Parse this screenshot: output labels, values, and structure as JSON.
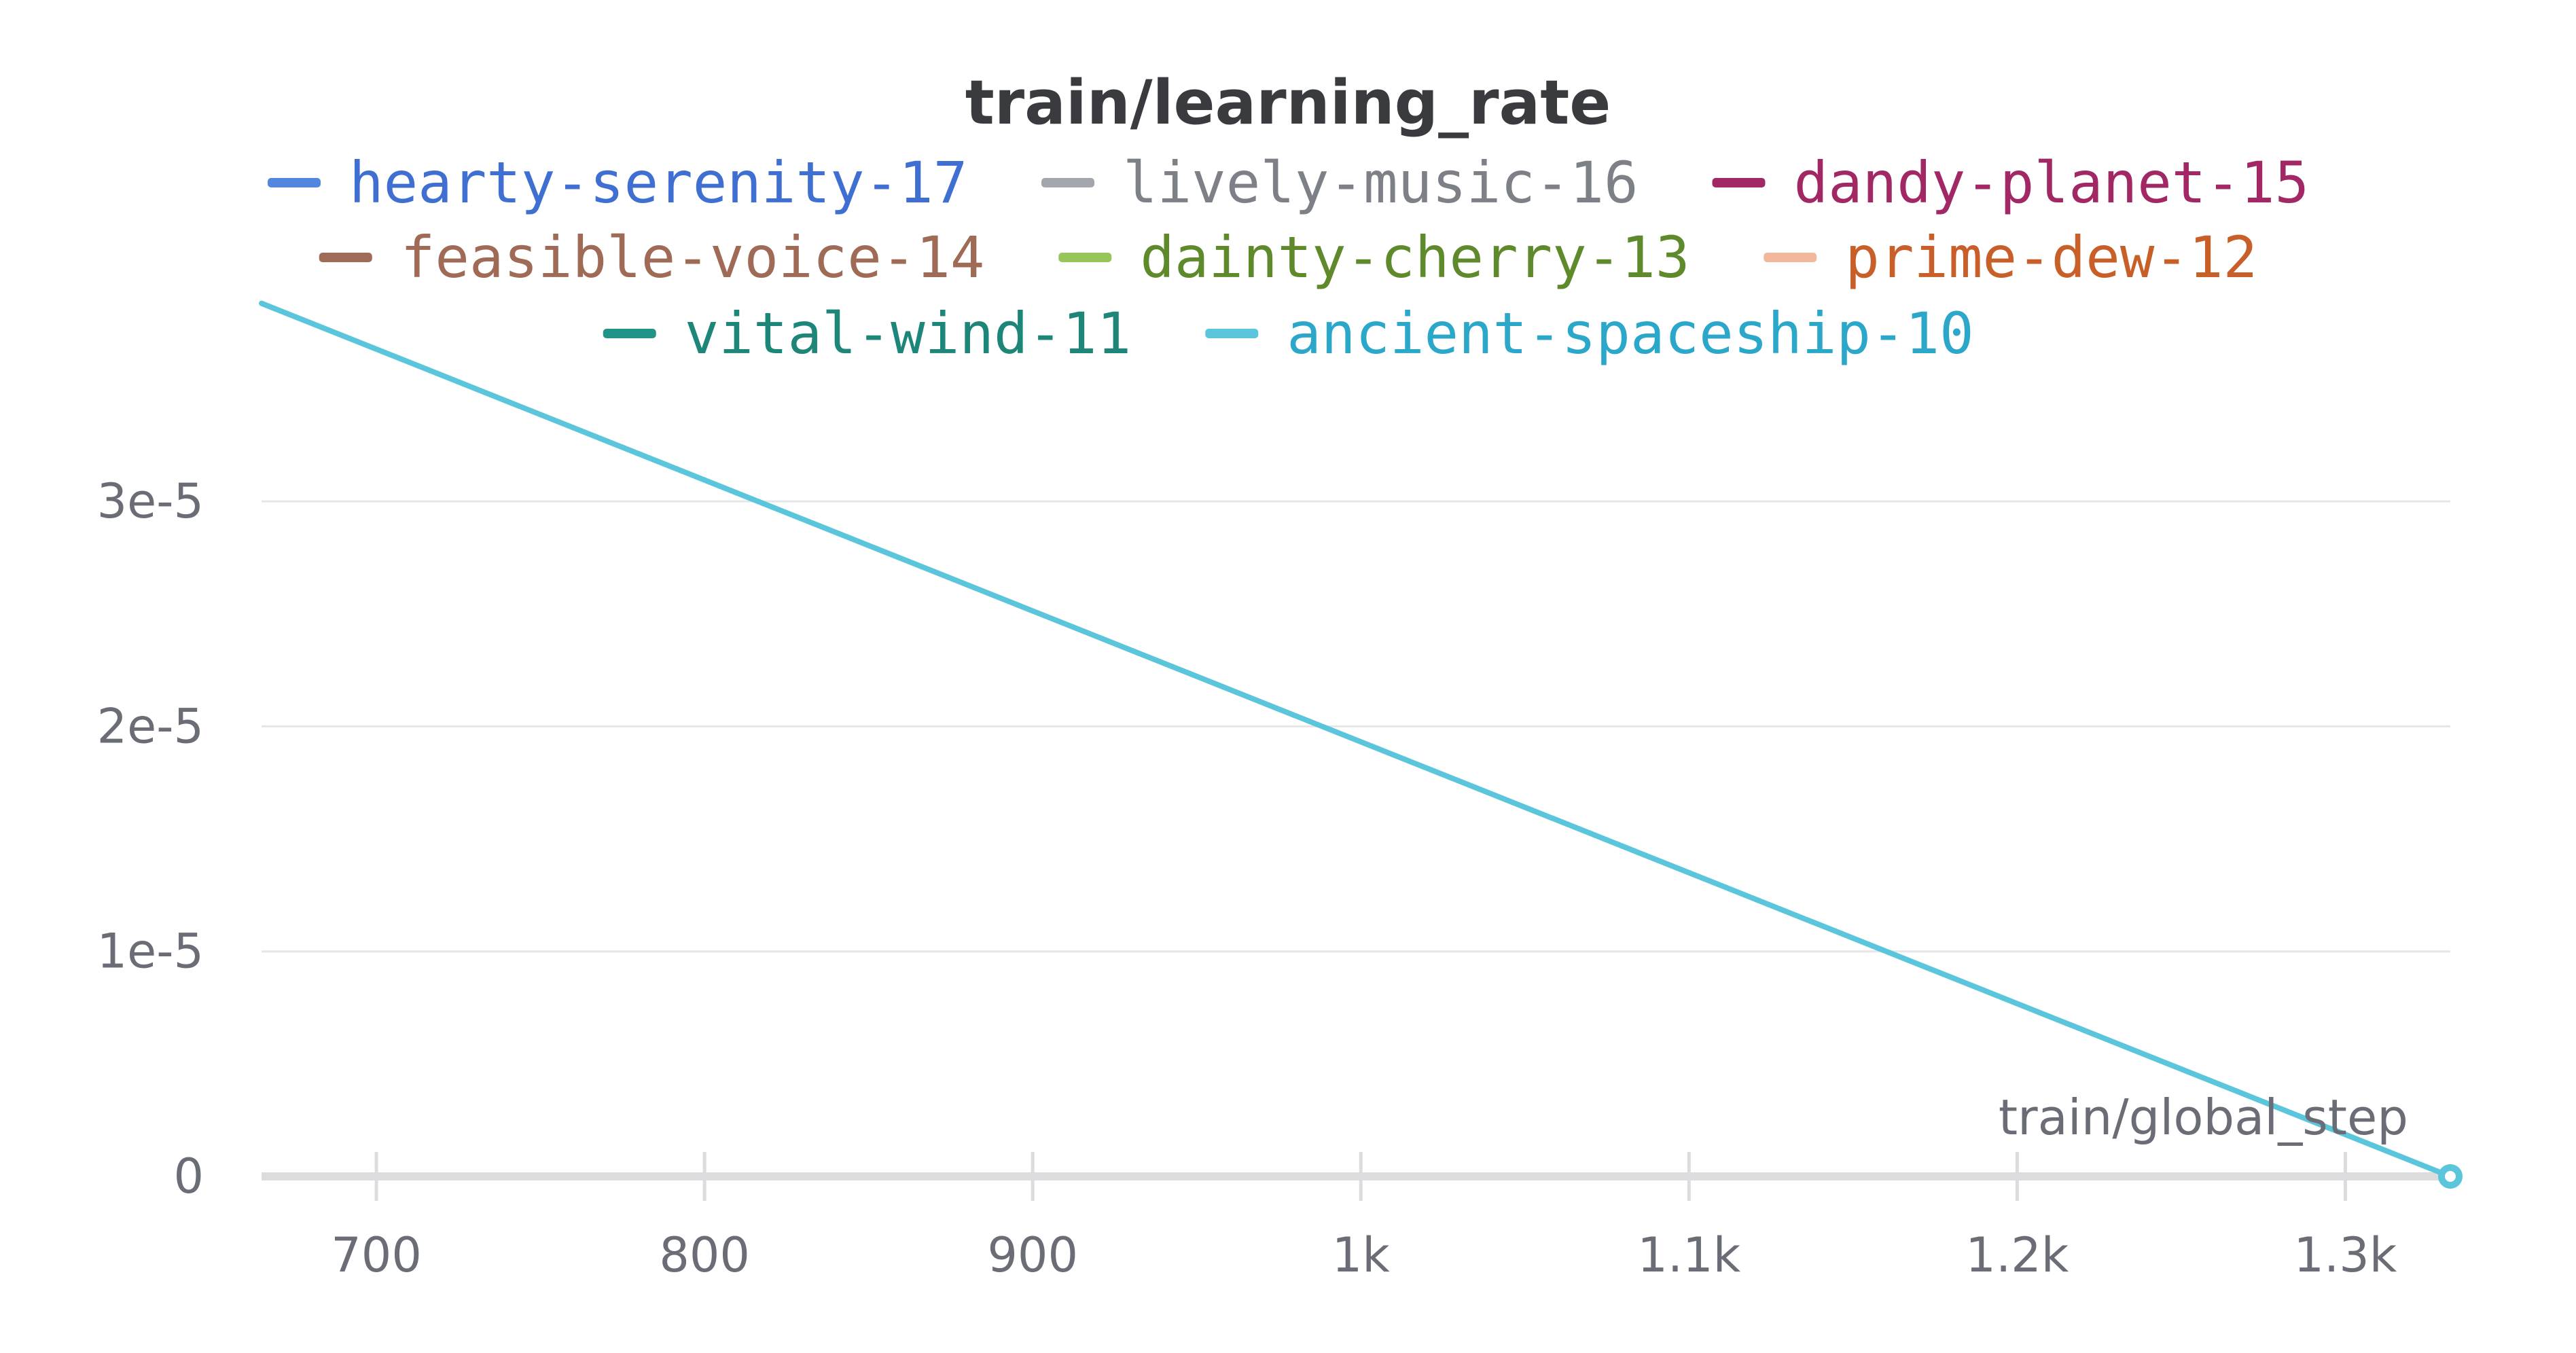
{
  "chart_data": {
    "type": "line",
    "title": "train/learning_rate",
    "xlabel": "train/global_step",
    "ylabel": "",
    "xlim": [
      665,
      1332
    ],
    "ylim": [
      0,
      3.9e-05
    ],
    "x_ticks": [
      {
        "value": 700,
        "label": "700"
      },
      {
        "value": 800,
        "label": "800"
      },
      {
        "value": 900,
        "label": "900"
      },
      {
        "value": 1000,
        "label": "1k"
      },
      {
        "value": 1100,
        "label": "1.1k"
      },
      {
        "value": 1200,
        "label": "1.2k"
      },
      {
        "value": 1300,
        "label": "1.3k"
      }
    ],
    "y_ticks": [
      {
        "value": 0,
        "label": "0"
      },
      {
        "value": 1e-05,
        "label": "1e-5"
      },
      {
        "value": 2e-05,
        "label": "2e-5"
      },
      {
        "value": 3e-05,
        "label": "3e-5"
      }
    ],
    "grid": true,
    "legend_position": "top-center",
    "legend_rows": [
      [
        0,
        1,
        2
      ],
      [
        3,
        4,
        5
      ],
      [
        6,
        7
      ]
    ],
    "series": [
      {
        "name": "hearty-serenity-17",
        "color": "#5387dd",
        "text_color": "#3f6fd1",
        "x": [],
        "y": []
      },
      {
        "name": "lively-music-16",
        "color": "#a3a7ad",
        "text_color": "#7d8087",
        "x": [],
        "y": []
      },
      {
        "name": "dandy-planet-15",
        "color": "#a12864",
        "text_color": "#a12864",
        "x": [],
        "y": []
      },
      {
        "name": "feasible-voice-14",
        "color": "#a06b56",
        "text_color": "#a06b56",
        "x": [],
        "y": []
      },
      {
        "name": "dainty-cherry-13",
        "color": "#98c55b",
        "text_color": "#5f8a2b",
        "x": [],
        "y": []
      },
      {
        "name": "prime-dew-12",
        "color": "#f2b89b",
        "text_color": "#c85e28",
        "x": [],
        "y": []
      },
      {
        "name": "vital-wind-11",
        "color": "#229487",
        "text_color": "#1d8679",
        "x": [],
        "y": []
      },
      {
        "name": "ancient-spaceship-10",
        "color": "#5bc5db",
        "text_color": "#2aa7c9",
        "x": [
          665,
          1332
        ],
        "y": [
          3.88e-05,
          0
        ]
      }
    ]
  }
}
